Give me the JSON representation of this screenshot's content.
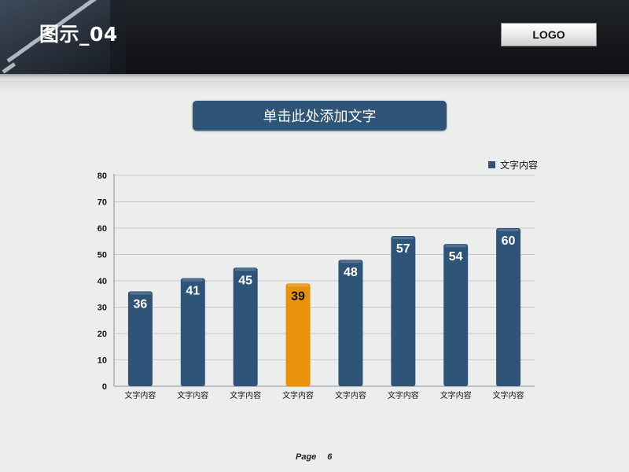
{
  "header": {
    "title": "图示_04",
    "logo": "LOGO"
  },
  "subtitle": "单击此处添加文字",
  "footer": {
    "page_label": "Page",
    "page_number": "6"
  },
  "colors": {
    "bar": "#2e5478",
    "highlight": "#e8910a",
    "highlight_text": "#111111",
    "bar_text": "#ffffff"
  },
  "chart_data": {
    "type": "bar",
    "categories": [
      "文字内容",
      "文字内容",
      "文字内容",
      "文字内容",
      "文字内容",
      "文字内容",
      "文字内容",
      "文字内容"
    ],
    "series": [
      {
        "name": "文字内容",
        "values": [
          36,
          41,
          45,
          39,
          48,
          57,
          54,
          60
        ]
      }
    ],
    "highlight_index": 3,
    "ylim": [
      0,
      80
    ],
    "yticks": [
      0,
      10,
      20,
      30,
      40,
      50,
      60,
      70,
      80
    ],
    "grid": true,
    "legend": "top-right",
    "data_labels": true
  }
}
